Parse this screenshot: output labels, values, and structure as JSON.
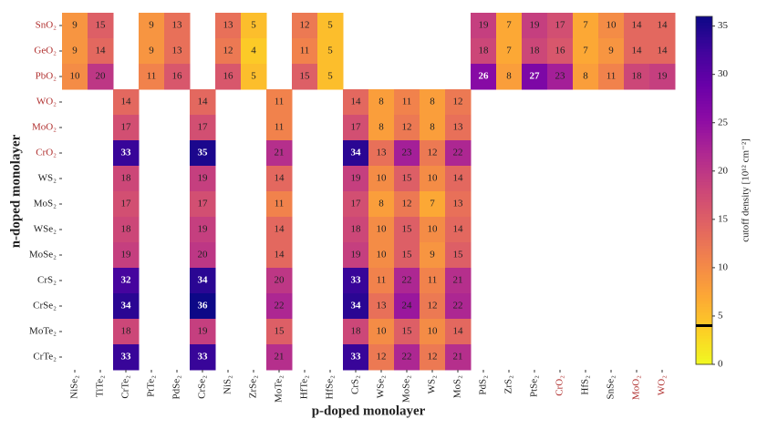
{
  "chart_data": {
    "type": "heatmap",
    "xlabel": "p-doped monolayer",
    "ylabel": "n-doped monolayer",
    "colorbar_label": "cutoff density [10¹² cm⁻²]",
    "x": [
      "NiSe₂",
      "TiTe₂",
      "CrTe₂",
      "PtTe₂",
      "PdSe₂",
      "CrSe₂",
      "NiS₂",
      "ZrSe₂",
      "MoTe₂",
      "HfTe₂",
      "HfSe₂",
      "CrS₂",
      "WSe₂",
      "MoSe₂",
      "WS₂",
      "MoS₂",
      "PdS₂",
      "ZrS₂",
      "PtSe₂",
      "CrO₂",
      "HfS₂",
      "SnSe₂",
      "MoO₂",
      "WO₂"
    ],
    "y": [
      "SnO₂",
      "GeO₂",
      "PbO₂",
      "WO₂",
      "MoO₂",
      "CrO₂",
      "WS₂",
      "MoS₂",
      "WSe₂",
      "MoSe₂",
      "CrS₂",
      "CrSe₂",
      "MoTe₂",
      "CrTe₂"
    ],
    "z": [
      [
        9,
        15,
        null,
        9,
        13,
        null,
        13,
        5,
        null,
        12,
        5,
        null,
        null,
        null,
        null,
        null,
        19,
        7,
        19,
        17,
        7,
        10,
        14,
        14
      ],
      [
        9,
        14,
        null,
        9,
        13,
        null,
        12,
        4,
        null,
        11,
        5,
        null,
        null,
        null,
        null,
        null,
        18,
        7,
        18,
        16,
        7,
        9,
        14,
        14
      ],
      [
        10,
        20,
        null,
        11,
        16,
        null,
        16,
        5,
        null,
        15,
        5,
        null,
        null,
        null,
        null,
        null,
        26,
        8,
        27,
        23,
        8,
        11,
        18,
        19
      ],
      [
        null,
        null,
        14,
        null,
        null,
        14,
        null,
        null,
        11,
        null,
        null,
        14,
        8,
        11,
        8,
        12,
        null,
        null,
        null,
        null,
        null,
        null,
        null,
        null
      ],
      [
        null,
        null,
        17,
        null,
        null,
        17,
        null,
        null,
        11,
        null,
        null,
        17,
        8,
        12,
        8,
        13,
        null,
        null,
        null,
        null,
        null,
        null,
        null,
        null
      ],
      [
        null,
        null,
        33,
        null,
        null,
        35,
        null,
        null,
        21,
        null,
        null,
        34,
        13,
        23,
        12,
        22,
        null,
        null,
        null,
        null,
        null,
        null,
        null,
        null
      ],
      [
        null,
        null,
        18,
        null,
        null,
        19,
        null,
        null,
        14,
        null,
        null,
        19,
        10,
        15,
        10,
        14,
        null,
        null,
        null,
        null,
        null,
        null,
        null,
        null
      ],
      [
        null,
        null,
        17,
        null,
        null,
        17,
        null,
        null,
        11,
        null,
        null,
        17,
        8,
        12,
        7,
        13,
        null,
        null,
        null,
        null,
        null,
        null,
        null,
        null
      ],
      [
        null,
        null,
        18,
        null,
        null,
        19,
        null,
        null,
        14,
        null,
        null,
        18,
        10,
        15,
        10,
        14,
        null,
        null,
        null,
        null,
        null,
        null,
        null,
        null
      ],
      [
        null,
        null,
        19,
        null,
        null,
        20,
        null,
        null,
        14,
        null,
        null,
        19,
        10,
        15,
        9,
        15,
        null,
        null,
        null,
        null,
        null,
        null,
        null,
        null
      ],
      [
        null,
        null,
        32,
        null,
        null,
        34,
        null,
        null,
        20,
        null,
        null,
        33,
        11,
        22,
        11,
        21,
        null,
        null,
        null,
        null,
        null,
        null,
        null,
        null
      ],
      [
        null,
        null,
        34,
        null,
        null,
        36,
        null,
        null,
        22,
        null,
        null,
        34,
        13,
        24,
        12,
        22,
        null,
        null,
        null,
        null,
        null,
        null,
        null,
        null
      ],
      [
        null,
        null,
        18,
        null,
        null,
        19,
        null,
        null,
        15,
        null,
        null,
        18,
        10,
        15,
        10,
        14,
        null,
        null,
        null,
        null,
        null,
        null,
        null,
        null
      ],
      [
        null,
        null,
        33,
        null,
        null,
        33,
        null,
        null,
        21,
        null,
        null,
        33,
        12,
        22,
        12,
        21,
        null,
        null,
        null,
        null,
        null,
        null,
        null,
        null
      ]
    ],
    "colormap": "plasma_r",
    "clim": [
      0,
      36
    ],
    "cticks": [
      0,
      5,
      10,
      15,
      20,
      25,
      30,
      35
    ],
    "threshold": 4,
    "highlight_color": "#b0302f",
    "highlighted_x": [
      19,
      22,
      23
    ],
    "highlighted_y": [
      0,
      1,
      2,
      3,
      4,
      5
    ]
  }
}
